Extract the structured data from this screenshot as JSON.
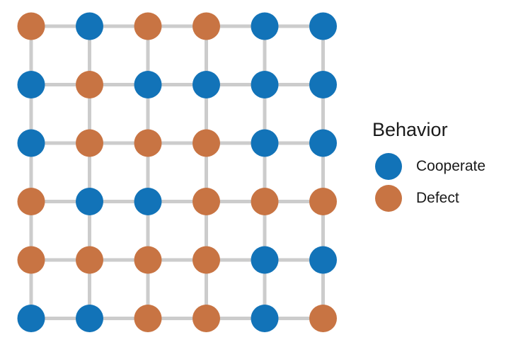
{
  "chart_data": {
    "type": "lattice-network",
    "rows": 6,
    "cols": 6,
    "grid": [
      [
        "D",
        "C",
        "D",
        "D",
        "C",
        "C"
      ],
      [
        "C",
        "D",
        "C",
        "C",
        "C",
        "C"
      ],
      [
        "C",
        "D",
        "D",
        "D",
        "C",
        "C"
      ],
      [
        "D",
        "C",
        "C",
        "D",
        "D",
        "D"
      ],
      [
        "D",
        "D",
        "D",
        "D",
        "C",
        "C"
      ],
      [
        "C",
        "C",
        "D",
        "D",
        "C",
        "D"
      ]
    ],
    "edge_color": "#cccccc",
    "legend": {
      "title": "Behavior",
      "placement": "right",
      "items": [
        {
          "key": "C",
          "label": "Cooperate",
          "color": "#1273b8"
        },
        {
          "key": "D",
          "label": "Defect",
          "color": "#c87443"
        }
      ]
    }
  }
}
